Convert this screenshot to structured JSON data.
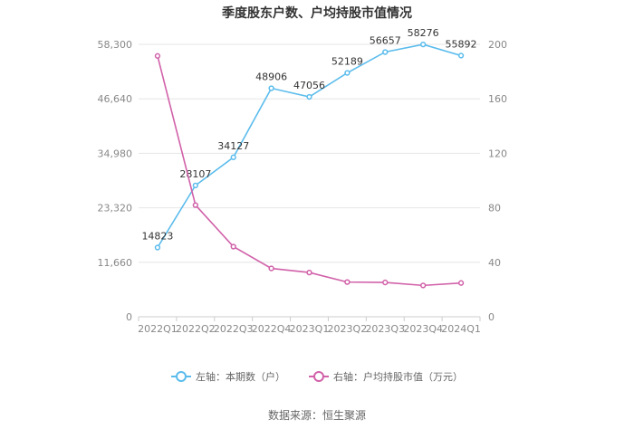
{
  "chart_data": {
    "type": "line",
    "title": "季度股东户数、户均持股市值情况",
    "categories": [
      "2022Q1",
      "2022Q2",
      "2022Q3",
      "2022Q4",
      "2023Q1",
      "2023Q2",
      "2023Q3",
      "2023Q4",
      "2024Q1"
    ],
    "left_axis": {
      "ticks": [
        "0",
        "11,660",
        "23,320",
        "34,980",
        "46,640",
        "58,300"
      ],
      "ylim": [
        0,
        58300
      ]
    },
    "right_axis": {
      "ticks": [
        "0",
        "40",
        "80",
        "120",
        "160",
        "200"
      ],
      "ylim": [
        0,
        200
      ]
    },
    "series": [
      {
        "name": "左轴：本期数（户）",
        "axis": "left",
        "color": "#5bbcec",
        "values": [
          14823,
          28107,
          34127,
          48906,
          47056,
          52189,
          56657,
          58276,
          55892
        ],
        "labels": [
          "14823",
          "28107",
          "34127",
          "48906",
          "47056",
          "52189",
          "56657",
          "58276",
          "55892"
        ]
      },
      {
        "name": "右轴：户均持股市值（万元）",
        "axis": "right",
        "color": "#d161a9",
        "values": [
          191.5,
          82,
          51.5,
          35.5,
          32.5,
          25.5,
          25.2,
          23,
          24.8
        ]
      }
    ],
    "grid": true,
    "legend_position": "bottom"
  },
  "source_text": "数据来源：恒生聚源"
}
